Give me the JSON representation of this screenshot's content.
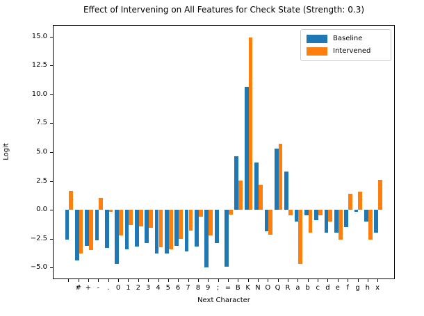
{
  "figure": {
    "title": "Effect of Intervening on All Features for Check State (Strength: 0.3)",
    "xlabel": "Next Character",
    "ylabel": "Logit"
  },
  "legend": {
    "items": [
      {
        "label": "Baseline",
        "color": "#1f77b4"
      },
      {
        "label": "Intervened",
        "color": "#ff7f0e"
      }
    ]
  },
  "chart_data": {
    "type": "bar",
    "title": "Effect of Intervening on All Features for Check State (Strength: 0.3)",
    "xlabel": "Next Character",
    "ylabel": "Logit",
    "categories": [
      " ",
      "#",
      "+",
      "-",
      ".",
      "0",
      "1",
      "2",
      "3",
      "4",
      "5",
      "6",
      "7",
      "8",
      "9",
      ";",
      "=",
      "B",
      "K",
      "N",
      "O",
      "Q",
      "R",
      "a",
      "b",
      "c",
      "d",
      "e",
      "f",
      "g",
      "h",
      "x"
    ],
    "series": [
      {
        "name": "Baseline",
        "color": "#1f77b4",
        "values": [
          -2.6,
          -4.35,
          -3.1,
          -2.65,
          -3.3,
          -4.7,
          -3.4,
          -3.2,
          -2.9,
          -3.75,
          -3.8,
          -3.1,
          -3.6,
          -3.2,
          -5.0,
          -2.9,
          -4.9,
          4.65,
          10.65,
          4.1,
          -1.85,
          5.3,
          3.3,
          -1.0,
          -0.5,
          -0.9,
          -2.0,
          -2.0,
          -1.5,
          -0.2,
          -1.0,
          -1.95
        ]
      },
      {
        "name": "Intervened",
        "color": "#ff7f0e",
        "values": [
          1.65,
          -3.75,
          -3.5,
          1.05,
          -0.15,
          -2.2,
          -1.3,
          -1.45,
          -1.55,
          -3.25,
          -3.4,
          -2.5,
          -1.8,
          -0.6,
          -2.2,
          0.0,
          -0.4,
          2.55,
          14.95,
          2.2,
          -2.15,
          5.75,
          -0.45,
          -4.7,
          -2.0,
          -0.45,
          -1.0,
          -2.6,
          1.4,
          1.6,
          -2.6,
          2.6
        ]
      }
    ],
    "ylim": [
      -6.0,
      16.0
    ],
    "yticks": [
      -5.0,
      -2.5,
      0.0,
      2.5,
      5.0,
      7.5,
      10.0,
      12.5,
      15.0
    ],
    "grid": false,
    "legend_position": "upper right"
  }
}
